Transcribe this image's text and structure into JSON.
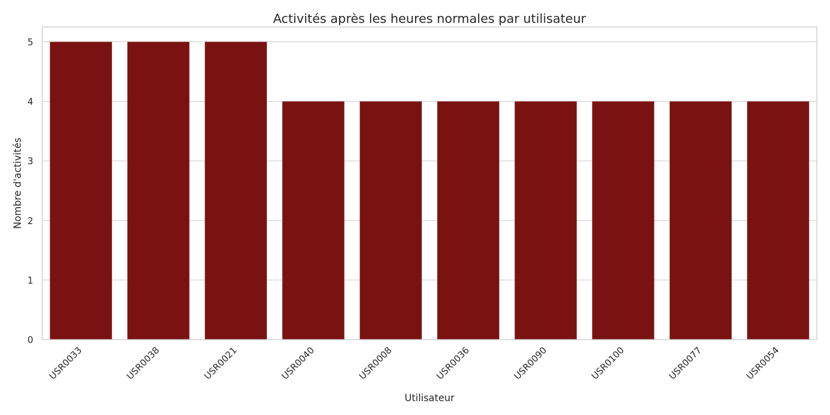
{
  "chart_data": {
    "type": "bar",
    "title": "Activités après les heures normales par utilisateur",
    "xlabel": "Utilisateur",
    "ylabel": "Nombre d'activités",
    "categories": [
      "USR0033",
      "USR0038",
      "USR0021",
      "USR0040",
      "USR0008",
      "USR0036",
      "USR0090",
      "USR0100",
      "USR0077",
      "USR0054"
    ],
    "values": [
      5,
      5,
      5,
      4,
      4,
      4,
      4,
      4,
      4,
      4
    ],
    "ylim": [
      0,
      5.25
    ],
    "yticks": [
      0,
      1,
      2,
      3,
      4,
      5
    ],
    "grid": "horizontal",
    "bar_color": "#7b1212",
    "x_tick_rotation": "45 degrees"
  }
}
